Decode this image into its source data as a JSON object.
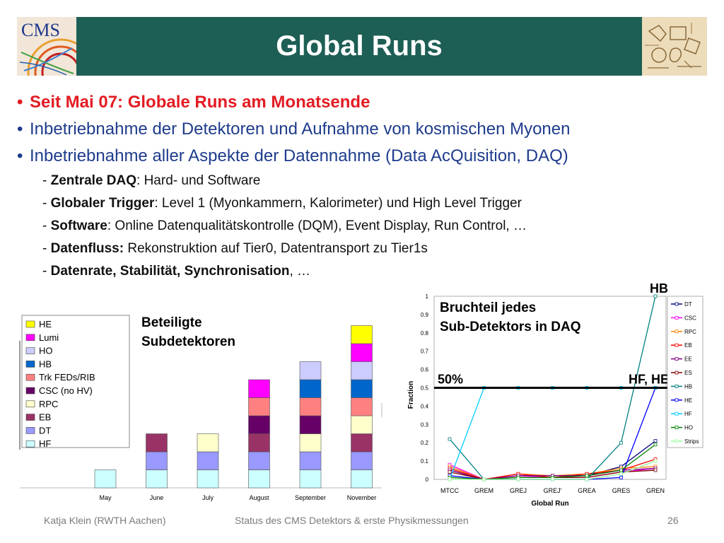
{
  "slide": {
    "title": "Global Runs",
    "bullets": [
      "Seit Mai 07: Globale Runs am Monatsende",
      "Inbetriebnahme der Detektoren und Aufnahme von kosmischen Myonen",
      "Inbetriebnahme aller Aspekte der Datennahme (Data AcQuisition, DAQ)"
    ],
    "subitems": [
      {
        "prefix": "- ",
        "bold": "Zentrale DAQ",
        "rest": ": Hard- und Software"
      },
      {
        "prefix": "- ",
        "bold": "Globaler Trigger",
        "rest": ": Level 1 (Myonkammern, Kalorimeter) und High Level Trigger"
      },
      {
        "prefix": "- ",
        "bold": "Software",
        "rest": ": Online Datenqualitätskontrolle (DQM), Event Display, Run Control, …"
      },
      {
        "prefix": "- ",
        "bold": "Datenfluss:",
        "rest": " Rekonstruktion auf Tier0, Datentransport zu Tier1s"
      },
      {
        "prefix": "- ",
        "bold": "Datenrate, Stabilität, Synchronisation",
        "rest": ", …"
      }
    ],
    "logo_text": "CMS"
  },
  "footer": {
    "author": "Katja Klein (RWTH Aachen)",
    "talk": "Status des CMS Detektors & erste Physikmessungen",
    "page": "26"
  },
  "chart_data": [
    {
      "type": "bar",
      "stacked": true,
      "title": "Beteiligte Subdetektoren",
      "categories": [
        "May",
        "June",
        "July",
        "August",
        "September",
        "November"
      ],
      "legend": [
        "HE",
        "Lumi",
        "HO",
        "HB",
        "Trk FEDs/RIB",
        "CSC (no HV)",
        "RPC",
        "EB",
        "DT",
        "HF"
      ],
      "legend_placement": "left",
      "colors": {
        "HF": "#ccffff",
        "DT": "#9999ff",
        "EB": "#993366",
        "RPC": "#ffffcc",
        "CSC (no HV)": "#660066",
        "Trk FEDs/RIB": "#ff8080",
        "HB": "#0066cc",
        "HO": "#ccccff",
        "Lumi": "#ff00ff",
        "HE": "#ffff00"
      },
      "stacks": [
        [
          "HF"
        ],
        [
          "HF",
          "DT",
          "EB"
        ],
        [
          "HF",
          "DT",
          "RPC"
        ],
        [
          "HF",
          "DT",
          "EB",
          "CSC (no HV)",
          "Trk FEDs/RIB",
          "Lumi"
        ],
        [
          "HF",
          "DT",
          "RPC",
          "CSC (no HV)",
          "Trk FEDs/RIB",
          "HB",
          "HO"
        ],
        [
          "HF",
          "DT",
          "EB",
          "RPC",
          "Trk FEDs/RIB",
          "HB",
          "HO",
          "Lumi",
          "HE"
        ]
      ]
    },
    {
      "type": "line",
      "annotation_title": [
        "Bruchteil jedes",
        "Sub-Detektors in DAQ"
      ],
      "xlabel": "Global Run",
      "ylabel": "Fraction",
      "categories": [
        "MTCC",
        "GREM",
        "GREJ",
        "GREJ'",
        "GREA",
        "GRES",
        "GREN"
      ],
      "ylim": [
        0,
        1
      ],
      "yticks": [
        "0",
        "0.1",
        "0.2",
        "0.3",
        "0.4",
        "0.5",
        "0.6",
        "0.7",
        "0.8",
        "0.9",
        "1"
      ],
      "reference_line": {
        "y": 0.5,
        "label_left": "50%",
        "label_right": "HF, HE"
      },
      "annotation_top": "HB",
      "legend_placement": "right",
      "series": [
        {
          "name": "DT",
          "color": "#000080",
          "values": [
            0.05,
            0,
            0.02,
            0.02,
            0.02,
            0.07,
            0.21
          ]
        },
        {
          "name": "CSC",
          "color": "#ff00ff",
          "values": [
            0.08,
            0,
            0.02,
            0.01,
            0.01,
            0.04,
            0.06
          ]
        },
        {
          "name": "RPC",
          "color": "#ff8000",
          "values": [
            0.07,
            0,
            0.03,
            0.02,
            0.03,
            0.06,
            0.07
          ]
        },
        {
          "name": "EB",
          "color": "#ff0000",
          "values": [
            0.06,
            0,
            0.03,
            0.01,
            0.03,
            0.05,
            0.11
          ]
        },
        {
          "name": "EE",
          "color": "#800080",
          "values": [
            0.05,
            0,
            0.02,
            0.02,
            0.02,
            0.05,
            0.06
          ]
        },
        {
          "name": "ES",
          "color": "#800000",
          "values": [
            0.04,
            0,
            0.01,
            0.01,
            0.01,
            0.04,
            0.05
          ]
        },
        {
          "name": "HB",
          "color": "#008080",
          "values": [
            0.22,
            0,
            0,
            0,
            0,
            0.2,
            1
          ]
        },
        {
          "name": "HE",
          "color": "#0000ff",
          "values": [
            0.02,
            0,
            0,
            0,
            0,
            0.01,
            0.5
          ]
        },
        {
          "name": "HF",
          "color": "#00ccff",
          "values": [
            0,
            0.5,
            0.5,
            0.5,
            0.5,
            0.5,
            0.5
          ]
        },
        {
          "name": "HO",
          "color": "#008000",
          "values": [
            0.01,
            0,
            0.01,
            0.01,
            0.02,
            0.05,
            0.19
          ]
        },
        {
          "name": "Strips",
          "color": "#99ff99",
          "values": [
            0,
            0,
            0,
            0,
            0,
            0.03,
            0.1
          ]
        }
      ]
    }
  ]
}
